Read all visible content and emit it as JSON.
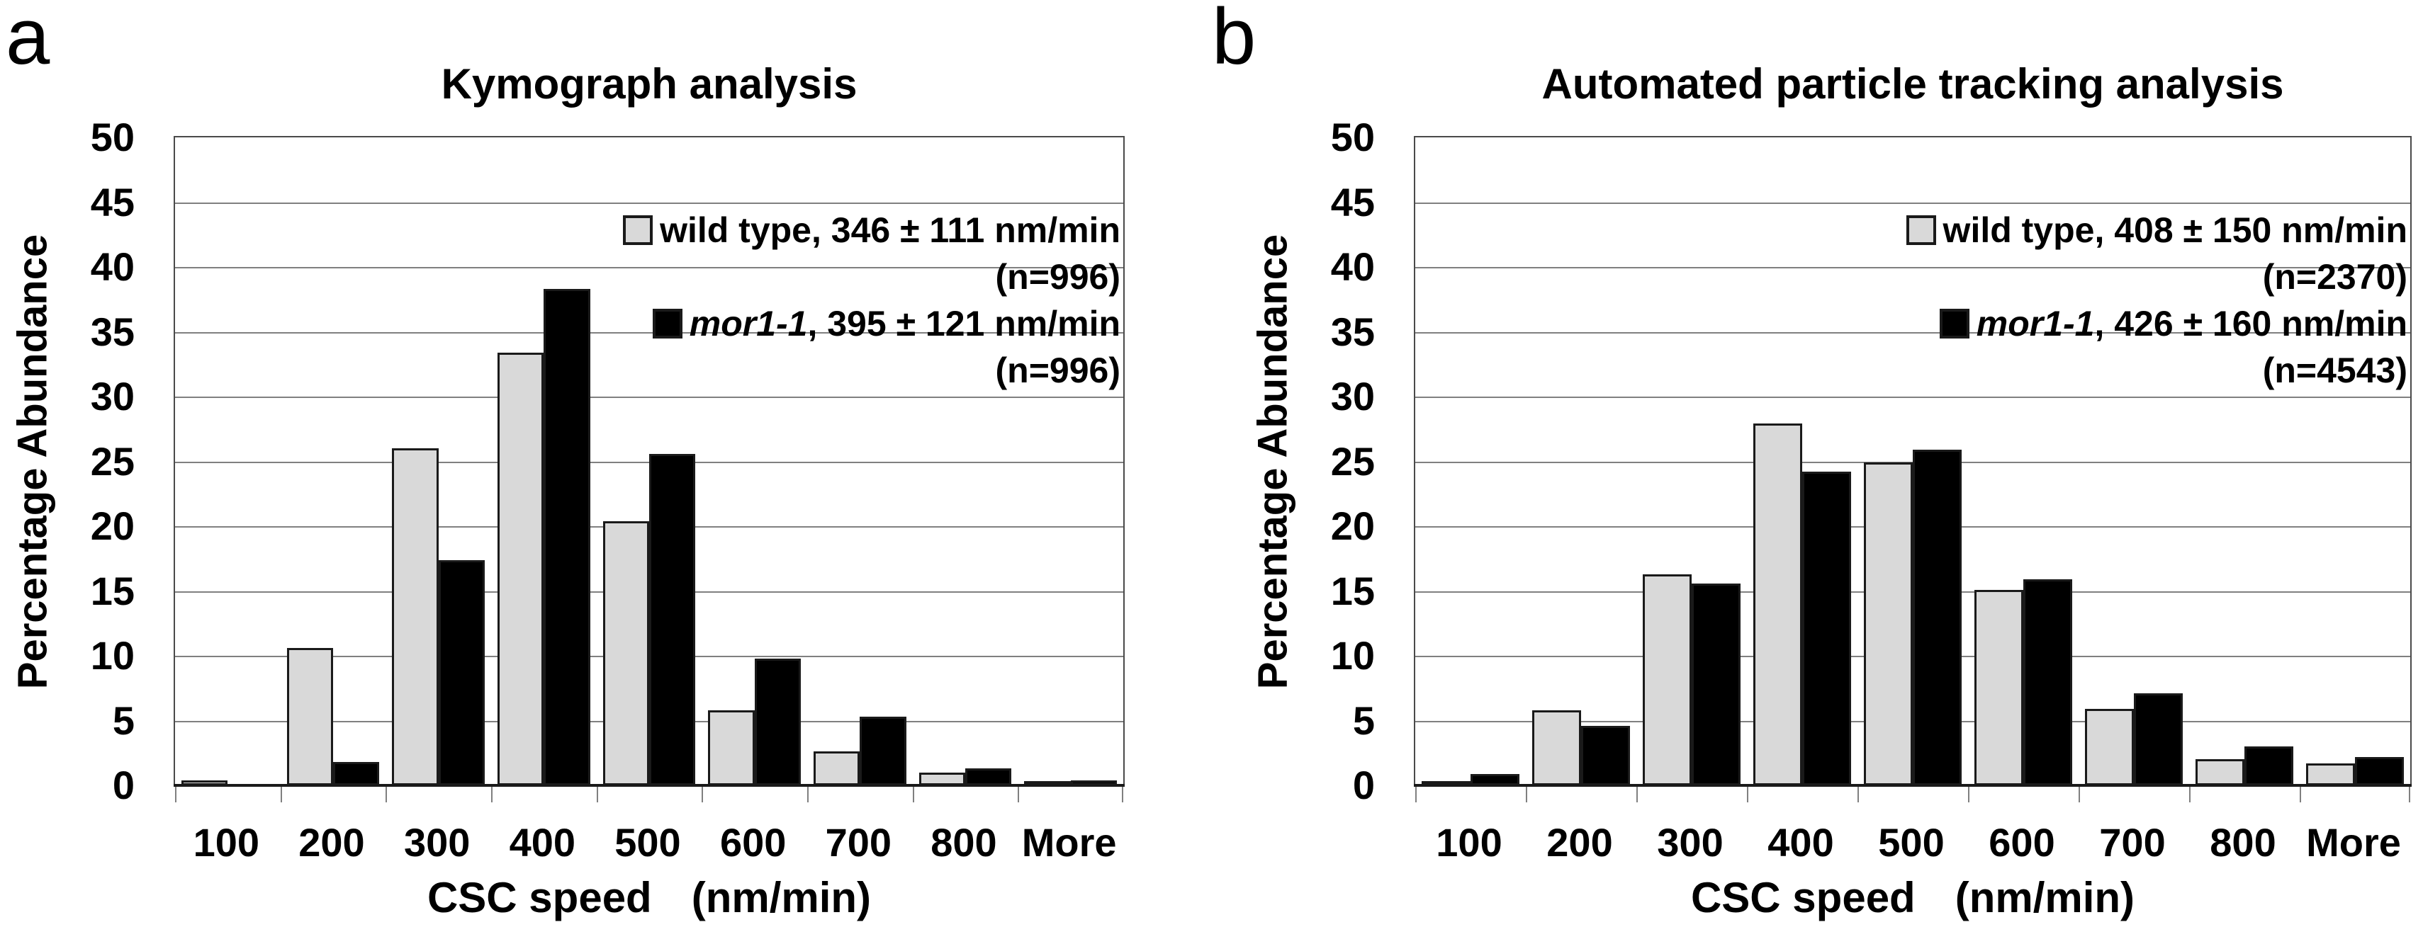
{
  "chart_data": [
    {
      "type": "bar",
      "panel_label": "a",
      "title": "Kymograph analysis",
      "categories": [
        "100",
        "200",
        "300",
        "400",
        "500",
        "600",
        "700",
        "800",
        "More"
      ],
      "series": [
        {
          "name": "wild type",
          "legend_italic": "",
          "legend_text": "wild type, 346 ± 111 nm/min",
          "legend_n": "(n=996)",
          "color": "#d9d9d9",
          "values": [
            0.4,
            10.6,
            26,
            33.4,
            20.4,
            5.8,
            2.6,
            1,
            0.2
          ]
        },
        {
          "name": "mor1-1",
          "legend_italic": "mor1-1",
          "legend_text": ", 395 ± 121 nm/min",
          "legend_n": "(n=996)",
          "color": "#000000",
          "values": [
            0,
            1.8,
            17.4,
            38.3,
            25.6,
            9.8,
            5.3,
            1.3,
            0.4
          ]
        }
      ],
      "xlabel_main": "CSC speed",
      "xlabel_unit": "(nm/min)",
      "ylabel": "Percentage Abundance",
      "ylim": [
        0,
        50
      ],
      "ytick_step": 5,
      "yticks": [
        0,
        5,
        10,
        15,
        20,
        25,
        30,
        35,
        40,
        45,
        50
      ],
      "grid": true,
      "legend_position": "upper-right-inside"
    },
    {
      "type": "bar",
      "panel_label": "b",
      "title": "Automated particle tracking analysis",
      "categories": [
        "100",
        "200",
        "300",
        "400",
        "500",
        "600",
        "700",
        "800",
        "More"
      ],
      "series": [
        {
          "name": "wild type",
          "legend_italic": "",
          "legend_text": "wild type, 408 ± 150 nm/min",
          "legend_n": "(n=2370)",
          "color": "#d9d9d9",
          "values": [
            0.3,
            5.8,
            16.3,
            27.9,
            24.9,
            15.1,
            5.9,
            2,
            1.7
          ]
        },
        {
          "name": "mor1-1",
          "legend_italic": "mor1-1",
          "legend_text": ", 426 ± 160 nm/min",
          "legend_n": "(n=4543)",
          "color": "#000000",
          "values": [
            0.9,
            4.6,
            15.6,
            24.2,
            25.9,
            15.9,
            7.1,
            3,
            2.2
          ]
        }
      ],
      "xlabel_main": "CSC speed",
      "xlabel_unit": "(nm/min)",
      "ylabel": "Percentage Abundance",
      "ylim": [
        0,
        50
      ],
      "ytick_step": 5,
      "yticks": [
        0,
        5,
        10,
        15,
        20,
        25,
        30,
        35,
        40,
        45,
        50
      ],
      "grid": true,
      "legend_position": "upper-right-inside"
    }
  ],
  "colors": {
    "bar_outline": "#1a1a1a",
    "gridline": "#808080",
    "plot_border": "#4a4a4a",
    "axis_line": "#1a1a1a",
    "wild_type_fill": "#d9d9d9",
    "mor1_fill": "#000000",
    "text": "#000000",
    "background": "#ffffff"
  }
}
